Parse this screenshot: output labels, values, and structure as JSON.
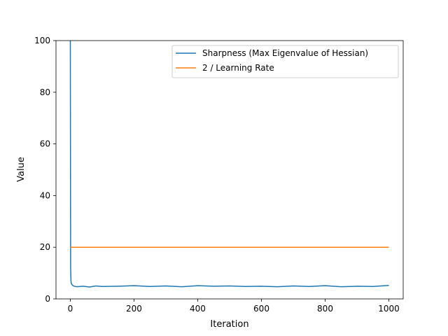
{
  "chart_data": {
    "type": "line",
    "title": "",
    "xlabel": "Iteration",
    "ylabel": "Value",
    "xlim": [
      -45,
      1045
    ],
    "ylim": [
      0,
      100
    ],
    "x_ticks": [
      0,
      200,
      400,
      600,
      800,
      1000
    ],
    "y_ticks": [
      0,
      20,
      40,
      60,
      80,
      100
    ],
    "grid": false,
    "legend_position": "upper right",
    "series": [
      {
        "name": "Sharpness (Max Eigenvalue of Hessian)",
        "color": "#1f77b4",
        "x": [
          0,
          1,
          2,
          3,
          5,
          10,
          20,
          40,
          60,
          80,
          100,
          150,
          200,
          250,
          300,
          350,
          400,
          450,
          500,
          550,
          600,
          650,
          700,
          750,
          800,
          850,
          900,
          950,
          1000
        ],
        "y": [
          100,
          12,
          7,
          6,
          5.5,
          5.0,
          4.7,
          4.9,
          4.6,
          5.0,
          4.8,
          4.9,
          5.1,
          4.8,
          5.0,
          4.7,
          5.1,
          4.9,
          5.0,
          4.8,
          4.9,
          4.7,
          5.0,
          4.8,
          5.1,
          4.7,
          4.9,
          4.8,
          5.2
        ]
      },
      {
        "name": "2 / Learning Rate",
        "color": "#ff7f0e",
        "x": [
          0,
          1000
        ],
        "y": [
          20,
          20
        ]
      }
    ]
  }
}
